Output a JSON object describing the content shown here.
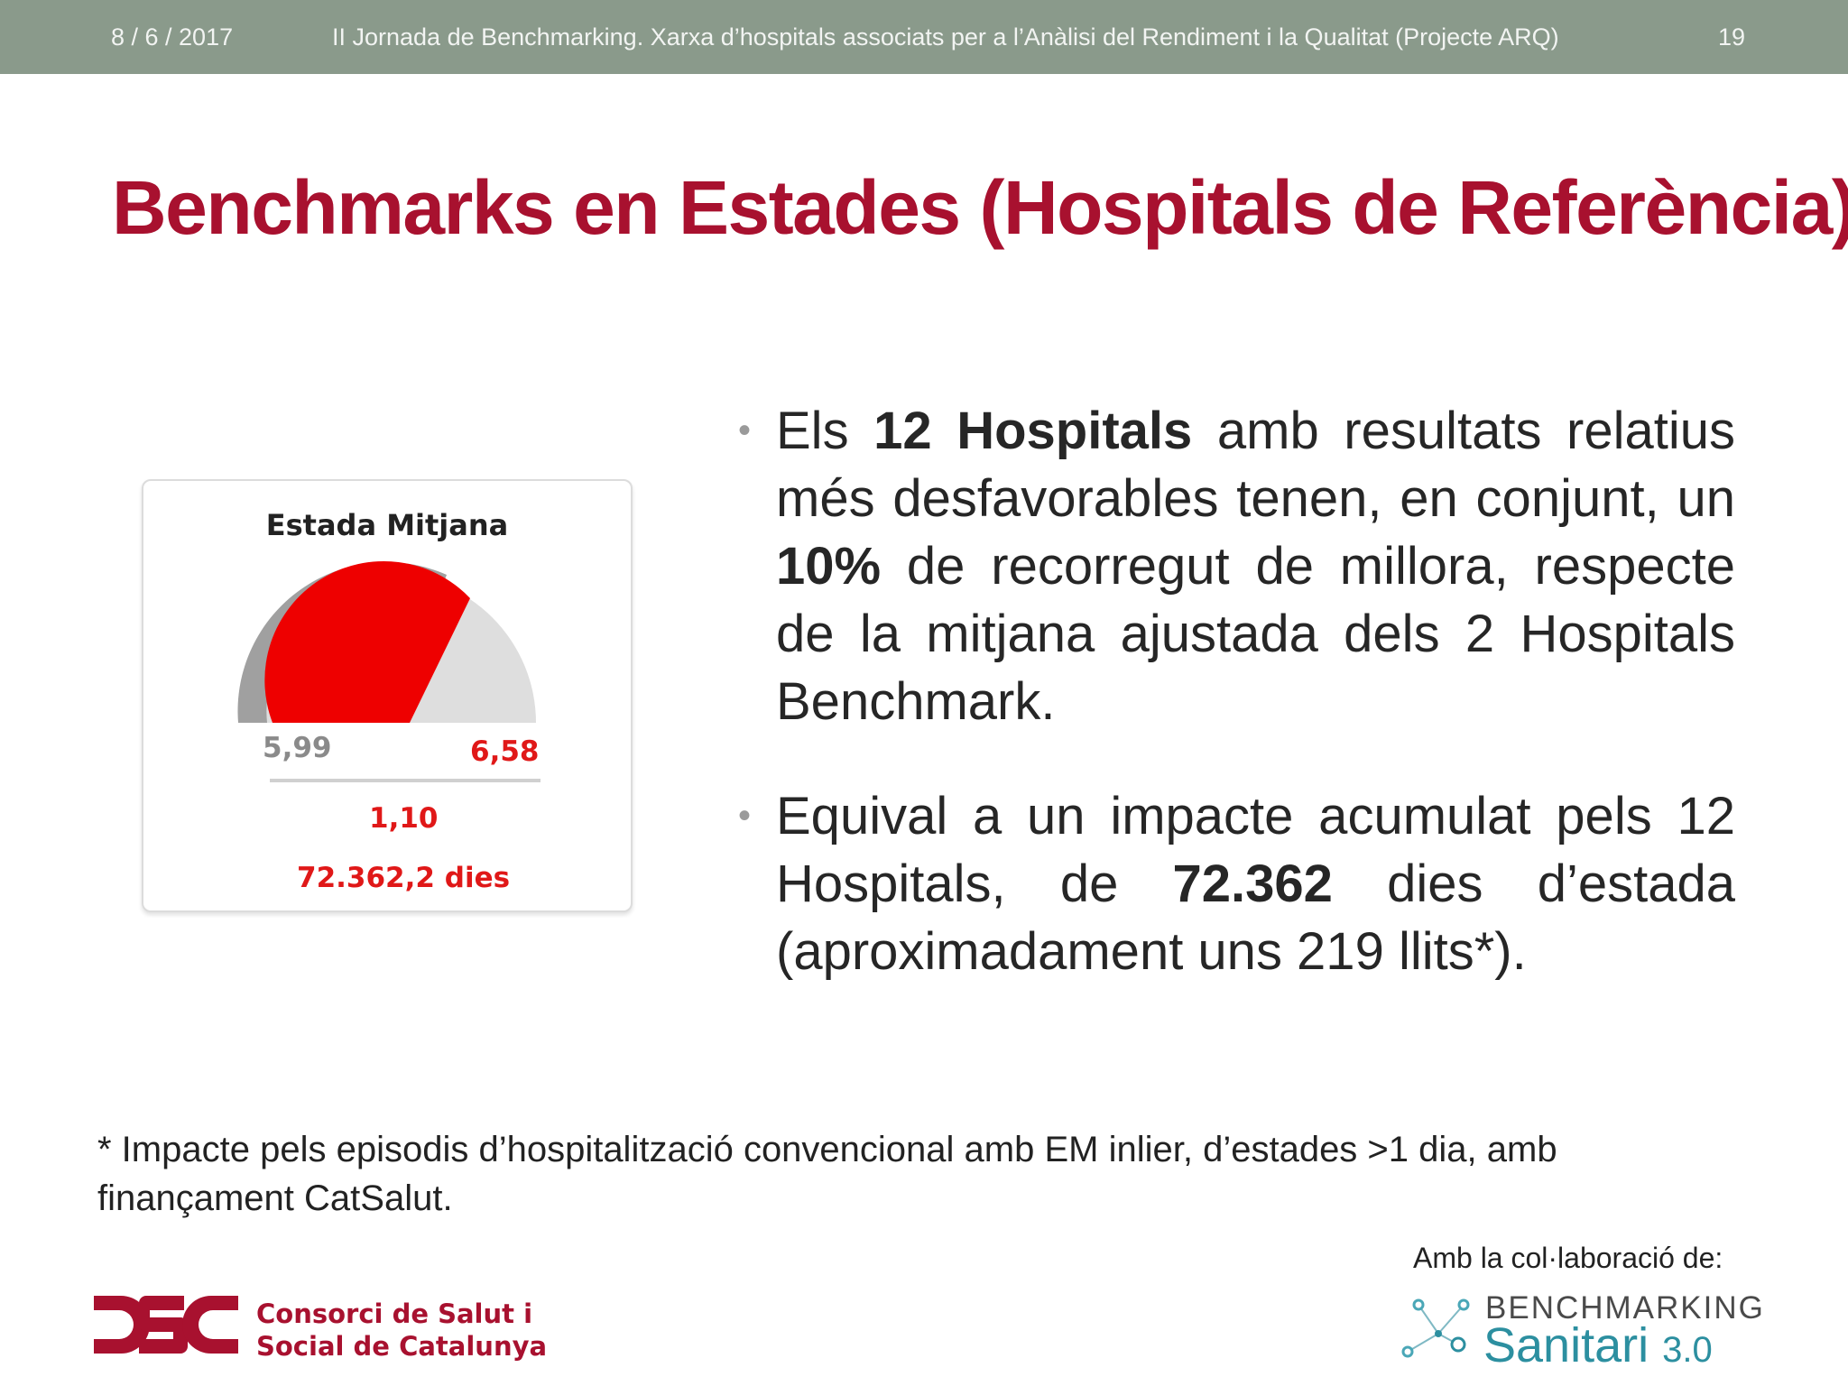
{
  "header": {
    "date": "8 / 6 / 2017",
    "conference": "II Jornada de Benchmarking. Xarxa d’hospitals associats per a l’Anàlisi del Rendiment i la Qualitat (Projecte ARQ)",
    "page_number": "19"
  },
  "slide": {
    "title": "Benchmarks en Estades (Hospitals de Referència)"
  },
  "gauge": {
    "title": "Estada Mitjana",
    "benchmark_value": "5,99",
    "hospitals_value": "6,58",
    "difference": "1,10",
    "impact_days": "72.362,2 dies",
    "colors": {
      "benchmark": "#a0a0a0",
      "hospitals": "#ee0000",
      "track": "#dedede"
    }
  },
  "bullets": [
    {
      "pre": "Els ",
      "b1": "12 Hospitals",
      "mid1": " amb resultats relatius més desfavorables tenen, en conjunt, un ",
      "b2": "10%",
      "post": " de recorregut de millora, respecte de la mitjana ajustada dels 2 Hospitals Benchmark."
    },
    {
      "pre": "Equival a un impacte acumulat pels 12 Hospitals, de ",
      "b1": "72.362",
      "post": " dies d’estada (aproximadament uns 219 llits*)."
    }
  ],
  "footnote": "* Impacte pels episodis d’hospitalització convencional amb EM inlier, d’estades >1 dia, amb finançament CatSalut.",
  "collaboration": {
    "label": "Amb la col·laboració de:",
    "logo_top": "BENCHMARKING",
    "logo_main": "Sanitari",
    "logo_version": "3.0"
  },
  "organization": {
    "line1": "Consorci de Salut i",
    "line2": "Social de Catalunya"
  }
}
